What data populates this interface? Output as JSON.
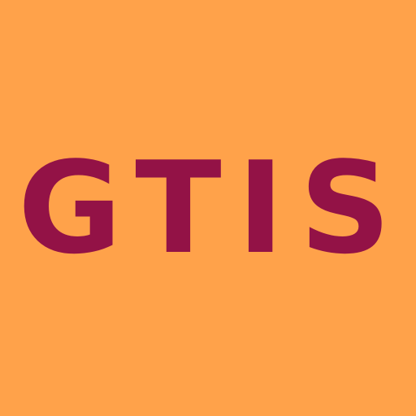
{
  "logo": {
    "text": "GTIS"
  },
  "colors": {
    "background": "#FFA24A",
    "text": "#931246"
  }
}
